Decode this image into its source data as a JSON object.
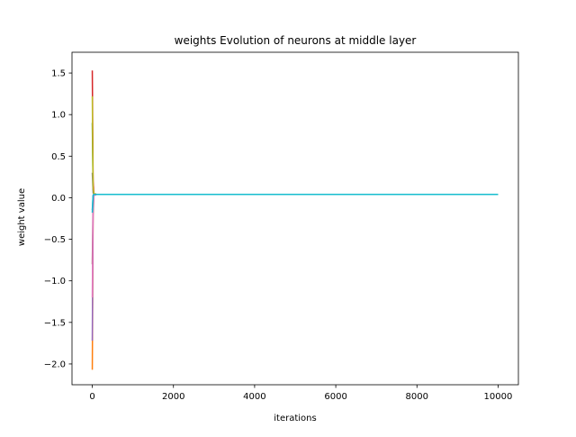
{
  "chart_data": {
    "type": "line",
    "title": "weights Evolution of neurons at middle layer",
    "xlabel": "iterations",
    "ylabel": "weight value",
    "xlim": [
      -500,
      10500
    ],
    "ylim": [
      -2.25,
      1.75
    ],
    "xticks": [
      0,
      2000,
      4000,
      6000,
      8000,
      10000
    ],
    "xtick_labels": [
      "0",
      "2000",
      "4000",
      "6000",
      "8000",
      "10000"
    ],
    "yticks": [
      -2.0,
      -1.5,
      -1.0,
      -0.5,
      0.0,
      0.5,
      1.0,
      1.5
    ],
    "ytick_labels": [
      "−2.0",
      "−1.5",
      "−1.0",
      "−0.5",
      "0.0",
      "0.5",
      "1.0",
      "1.5"
    ],
    "grid": false,
    "legend": "none",
    "series": [
      {
        "color": "#1f77b4",
        "x": [
          0,
          20,
          40,
          100,
          10000
        ],
        "y": [
          -0.15,
          0.03,
          0.04,
          0.04,
          0.04
        ]
      },
      {
        "color": "#ff7f0e",
        "x": [
          0,
          20,
          40,
          100,
          10000
        ],
        "y": [
          -2.07,
          -0.2,
          0.03,
          0.04,
          0.04
        ]
      },
      {
        "color": "#2ca02c",
        "x": [
          0,
          20,
          40,
          100,
          10000
        ],
        "y": [
          0.9,
          0.1,
          0.05,
          0.04,
          0.04
        ]
      },
      {
        "color": "#d62728",
        "x": [
          0,
          20,
          40,
          100,
          10000
        ],
        "y": [
          1.53,
          0.2,
          0.05,
          0.04,
          0.04
        ]
      },
      {
        "color": "#9467bd",
        "x": [
          0,
          20,
          40,
          100,
          10000
        ],
        "y": [
          -1.72,
          -0.15,
          0.03,
          0.04,
          0.04
        ]
      },
      {
        "color": "#8c564b",
        "x": [
          0,
          20,
          40,
          100,
          10000
        ],
        "y": [
          -0.8,
          -0.05,
          0.03,
          0.04,
          0.04
        ]
      },
      {
        "color": "#e377c2",
        "x": [
          0,
          20,
          40,
          100,
          10000
        ],
        "y": [
          -1.2,
          -0.1,
          0.03,
          0.04,
          0.04
        ]
      },
      {
        "color": "#7f7f7f",
        "x": [
          0,
          20,
          40,
          100,
          10000
        ],
        "y": [
          0.3,
          0.06,
          0.04,
          0.04,
          0.04
        ]
      },
      {
        "color": "#bcbd22",
        "x": [
          0,
          20,
          40,
          100,
          10000
        ],
        "y": [
          1.22,
          0.12,
          0.05,
          0.04,
          0.04
        ]
      },
      {
        "color": "#17becf",
        "x": [
          0,
          20,
          40,
          100,
          10000
        ],
        "y": [
          -0.18,
          0.02,
          0.04,
          0.04,
          0.04
        ]
      }
    ]
  }
}
